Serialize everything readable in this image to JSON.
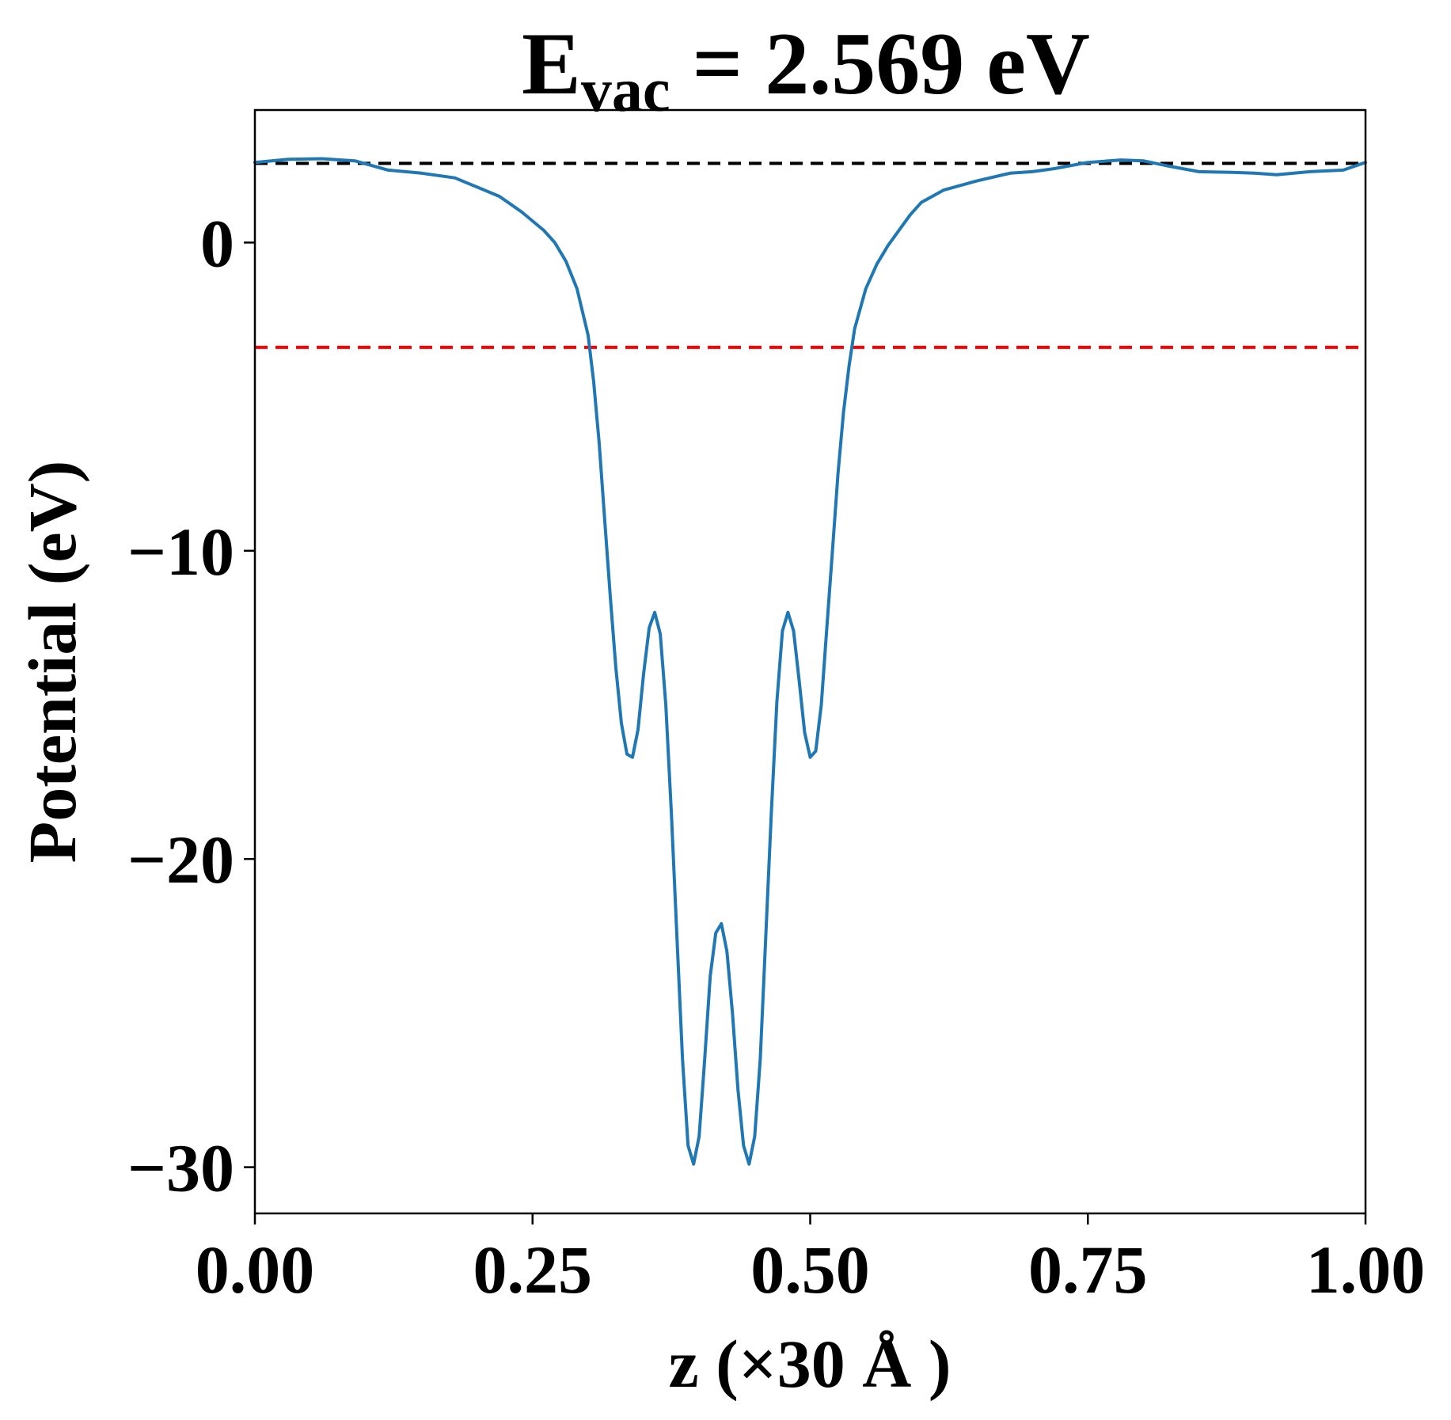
{
  "chart_data": {
    "type": "line",
    "title": {
      "main": "E",
      "subscript": "vac",
      "rest": " = 2.569 eV"
    },
    "xlabel": "z (×30 Å )",
    "ylabel": "Potential (eV)",
    "xlim": [
      0.0,
      1.0
    ],
    "ylim": [
      -31.5,
      4.3
    ],
    "xticks": [
      0.0,
      0.25,
      0.5,
      0.75,
      1.0
    ],
    "xtick_labels": [
      "0.00",
      "0.25",
      "0.50",
      "0.75",
      "1.00"
    ],
    "yticks": [
      0,
      -10,
      -20,
      -30
    ],
    "ytick_labels": [
      "0",
      "−10",
      "−20",
      "−30"
    ],
    "grid": false,
    "reference_lines": [
      {
        "y": 2.569,
        "style": "dashed",
        "color": "#000000"
      },
      {
        "y": -3.4,
        "style": "dashed",
        "color": "#ff0000"
      }
    ],
    "series": [
      {
        "color": "#1f77b4",
        "points": [
          [
            0.0,
            2.6
          ],
          [
            0.03,
            2.7
          ],
          [
            0.06,
            2.72
          ],
          [
            0.09,
            2.65
          ],
          [
            0.12,
            2.35
          ],
          [
            0.15,
            2.25
          ],
          [
            0.18,
            2.1
          ],
          [
            0.2,
            1.8
          ],
          [
            0.22,
            1.5
          ],
          [
            0.24,
            1.0
          ],
          [
            0.26,
            0.4
          ],
          [
            0.27,
            0.0
          ],
          [
            0.28,
            -0.6
          ],
          [
            0.29,
            -1.5
          ],
          [
            0.3,
            -3.0
          ],
          [
            0.305,
            -4.5
          ],
          [
            0.31,
            -6.5
          ],
          [
            0.315,
            -9.0
          ],
          [
            0.32,
            -11.5
          ],
          [
            0.325,
            -13.8
          ],
          [
            0.33,
            -15.6
          ],
          [
            0.335,
            -16.6
          ],
          [
            0.34,
            -16.7
          ],
          [
            0.345,
            -15.8
          ],
          [
            0.35,
            -14.0
          ],
          [
            0.355,
            -12.5
          ],
          [
            0.36,
            -12.0
          ],
          [
            0.365,
            -12.7
          ],
          [
            0.37,
            -15.0
          ],
          [
            0.375,
            -18.5
          ],
          [
            0.38,
            -22.5
          ],
          [
            0.385,
            -26.5
          ],
          [
            0.39,
            -29.3
          ],
          [
            0.395,
            -29.9
          ],
          [
            0.4,
            -29.0
          ],
          [
            0.405,
            -26.5
          ],
          [
            0.41,
            -23.8
          ],
          [
            0.415,
            -22.4
          ],
          [
            0.42,
            -22.1
          ],
          [
            0.425,
            -23.0
          ],
          [
            0.43,
            -25.0
          ],
          [
            0.435,
            -27.5
          ],
          [
            0.44,
            -29.3
          ],
          [
            0.445,
            -29.9
          ],
          [
            0.45,
            -29.0
          ],
          [
            0.455,
            -26.5
          ],
          [
            0.46,
            -22.5
          ],
          [
            0.465,
            -18.5
          ],
          [
            0.47,
            -14.9
          ],
          [
            0.475,
            -12.6
          ],
          [
            0.48,
            -12.0
          ],
          [
            0.485,
            -12.6
          ],
          [
            0.49,
            -14.2
          ],
          [
            0.495,
            -15.9
          ],
          [
            0.5,
            -16.7
          ],
          [
            0.505,
            -16.5
          ],
          [
            0.51,
            -15.0
          ],
          [
            0.515,
            -12.5
          ],
          [
            0.52,
            -10.0
          ],
          [
            0.525,
            -7.5
          ],
          [
            0.53,
            -5.5
          ],
          [
            0.535,
            -4.0
          ],
          [
            0.54,
            -2.8
          ],
          [
            0.55,
            -1.5
          ],
          [
            0.56,
            -0.7
          ],
          [
            0.57,
            -0.1
          ],
          [
            0.58,
            0.4
          ],
          [
            0.59,
            0.9
          ],
          [
            0.6,
            1.3
          ],
          [
            0.62,
            1.7
          ],
          [
            0.65,
            2.0
          ],
          [
            0.68,
            2.25
          ],
          [
            0.7,
            2.3
          ],
          [
            0.72,
            2.4
          ],
          [
            0.75,
            2.6
          ],
          [
            0.78,
            2.68
          ],
          [
            0.8,
            2.65
          ],
          [
            0.82,
            2.5
          ],
          [
            0.85,
            2.3
          ],
          [
            0.88,
            2.28
          ],
          [
            0.9,
            2.25
          ],
          [
            0.92,
            2.2
          ],
          [
            0.95,
            2.3
          ],
          [
            0.98,
            2.35
          ],
          [
            1.0,
            2.6
          ]
        ]
      }
    ]
  }
}
